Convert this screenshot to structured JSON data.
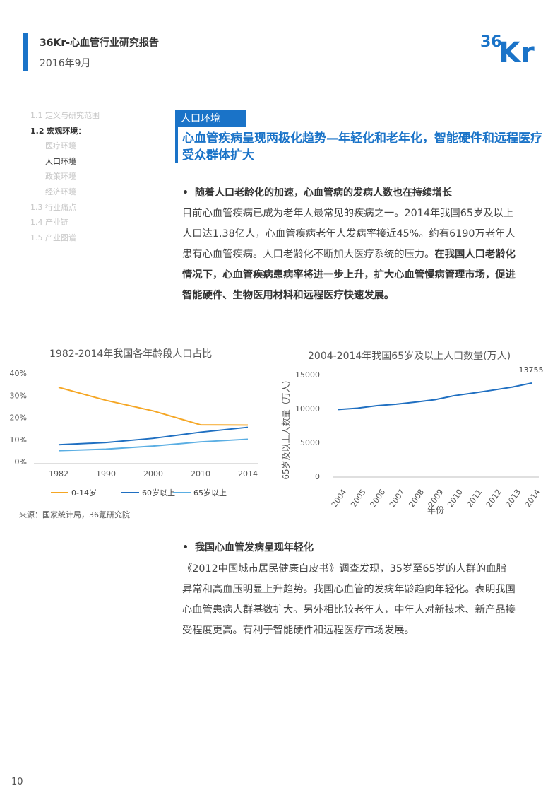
{
  "header": {
    "title": "36Kr-心血管行业研究报告",
    "date": "2016年9月",
    "logo": "36Kr"
  },
  "nav": [
    {
      "label": "1.1  定义与研究范围",
      "level": 1,
      "active": false
    },
    {
      "label": "1.2  宏观环境：",
      "level": 1,
      "active": true
    },
    {
      "label": "医疗环境",
      "level": 2,
      "active": false
    },
    {
      "label": "人口环境",
      "level": 2,
      "active": true
    },
    {
      "label": "政策环境",
      "level": 2,
      "active": false
    },
    {
      "label": "经济环境",
      "level": 2,
      "active": false
    },
    {
      "label": "1.3 行业痛点",
      "level": 1,
      "active": false
    },
    {
      "label": "1.4  产业链",
      "level": 1,
      "active": false
    },
    {
      "label": "1.5 产业图谱",
      "level": 1,
      "active": false
    }
  ],
  "section": {
    "tag": "人口环境",
    "headline": "心血管疾病呈现两极化趋势—年轻化和老年化，智能硬件和远程医疗受众群体扩大"
  },
  "block1": {
    "bullet": "随着人口老龄化的加速，心血管病的发病人数也在持续增长",
    "para_normal": "目前心血管疾病已成为老年人最常见的疾病之一。2014年我国65岁及以上人口达1.38亿人，心血管疾病老年人发病率接近45%。约有6190万老年人患有心血管疾病。人口老龄化不断加大医疗系统的压力。",
    "para_bold": "在我国人口老龄化情况下，心血管疾病患病率将进一步上升，扩大心血管慢病管理市场，促进智能硬件、生物医用材料和远程医疗快速发展。"
  },
  "chart_data": [
    {
      "type": "line",
      "title": "1982-2014年我国各年龄段人口占比",
      "x": [
        "1982",
        "1990",
        "2000",
        "2010",
        "2014"
      ],
      "yticks": [
        "0%",
        "10%",
        "20%",
        "30%",
        "40%"
      ],
      "ylim": [
        0,
        40
      ],
      "series": [
        {
          "name": "0-14岁",
          "color": "#f5a623",
          "values": [
            33.6,
            27.7,
            22.9,
            16.6,
            16.5
          ]
        },
        {
          "name": "60岁以上",
          "color": "#1f6fc1",
          "values": [
            7.6,
            8.6,
            10.5,
            13.3,
            15.5
          ]
        },
        {
          "name": "65岁以上",
          "color": "#5aaee3",
          "values": [
            4.9,
            5.6,
            7.0,
            8.9,
            10.1
          ]
        }
      ],
      "legend": "bottom"
    },
    {
      "type": "line",
      "title": "2004-2014年我国65岁及以上人口数量(万人)",
      "ylabel": "65岁及以上人数量（万人）",
      "xlabel": "年份",
      "x": [
        "2004",
        "2005",
        "2006",
        "2007",
        "2008",
        "2009",
        "2010",
        "2011",
        "2012",
        "2013",
        "2014"
      ],
      "yticks": [
        "0",
        "5000",
        "10000",
        "15000"
      ],
      "ylim": [
        0,
        15000
      ],
      "series": [
        {
          "name": "",
          "color": "#1f6fc1",
          "values": [
            9857,
            10055,
            10419,
            10636,
            10956,
            11307,
            11894,
            12288,
            12714,
            13161,
            13755
          ]
        }
      ],
      "data_label": "13755"
    }
  ],
  "source": "来源：国家统计局，36氪研究院",
  "block2": {
    "bullet": "我国心血管发病呈现年轻化",
    "para": "《2012中国城市居民健康白皮书》调查发现，35岁至65岁的人群的血脂异常和高血压明显上升趋势。我国心血管的发病年龄趋向年轻化。表明我国心血管患病人群基数扩大。另外相比较老年人，中年人对新技术、新产品接受程度更高。有利于智能硬件和远程医疗市场发展。"
  },
  "page_number": "10"
}
